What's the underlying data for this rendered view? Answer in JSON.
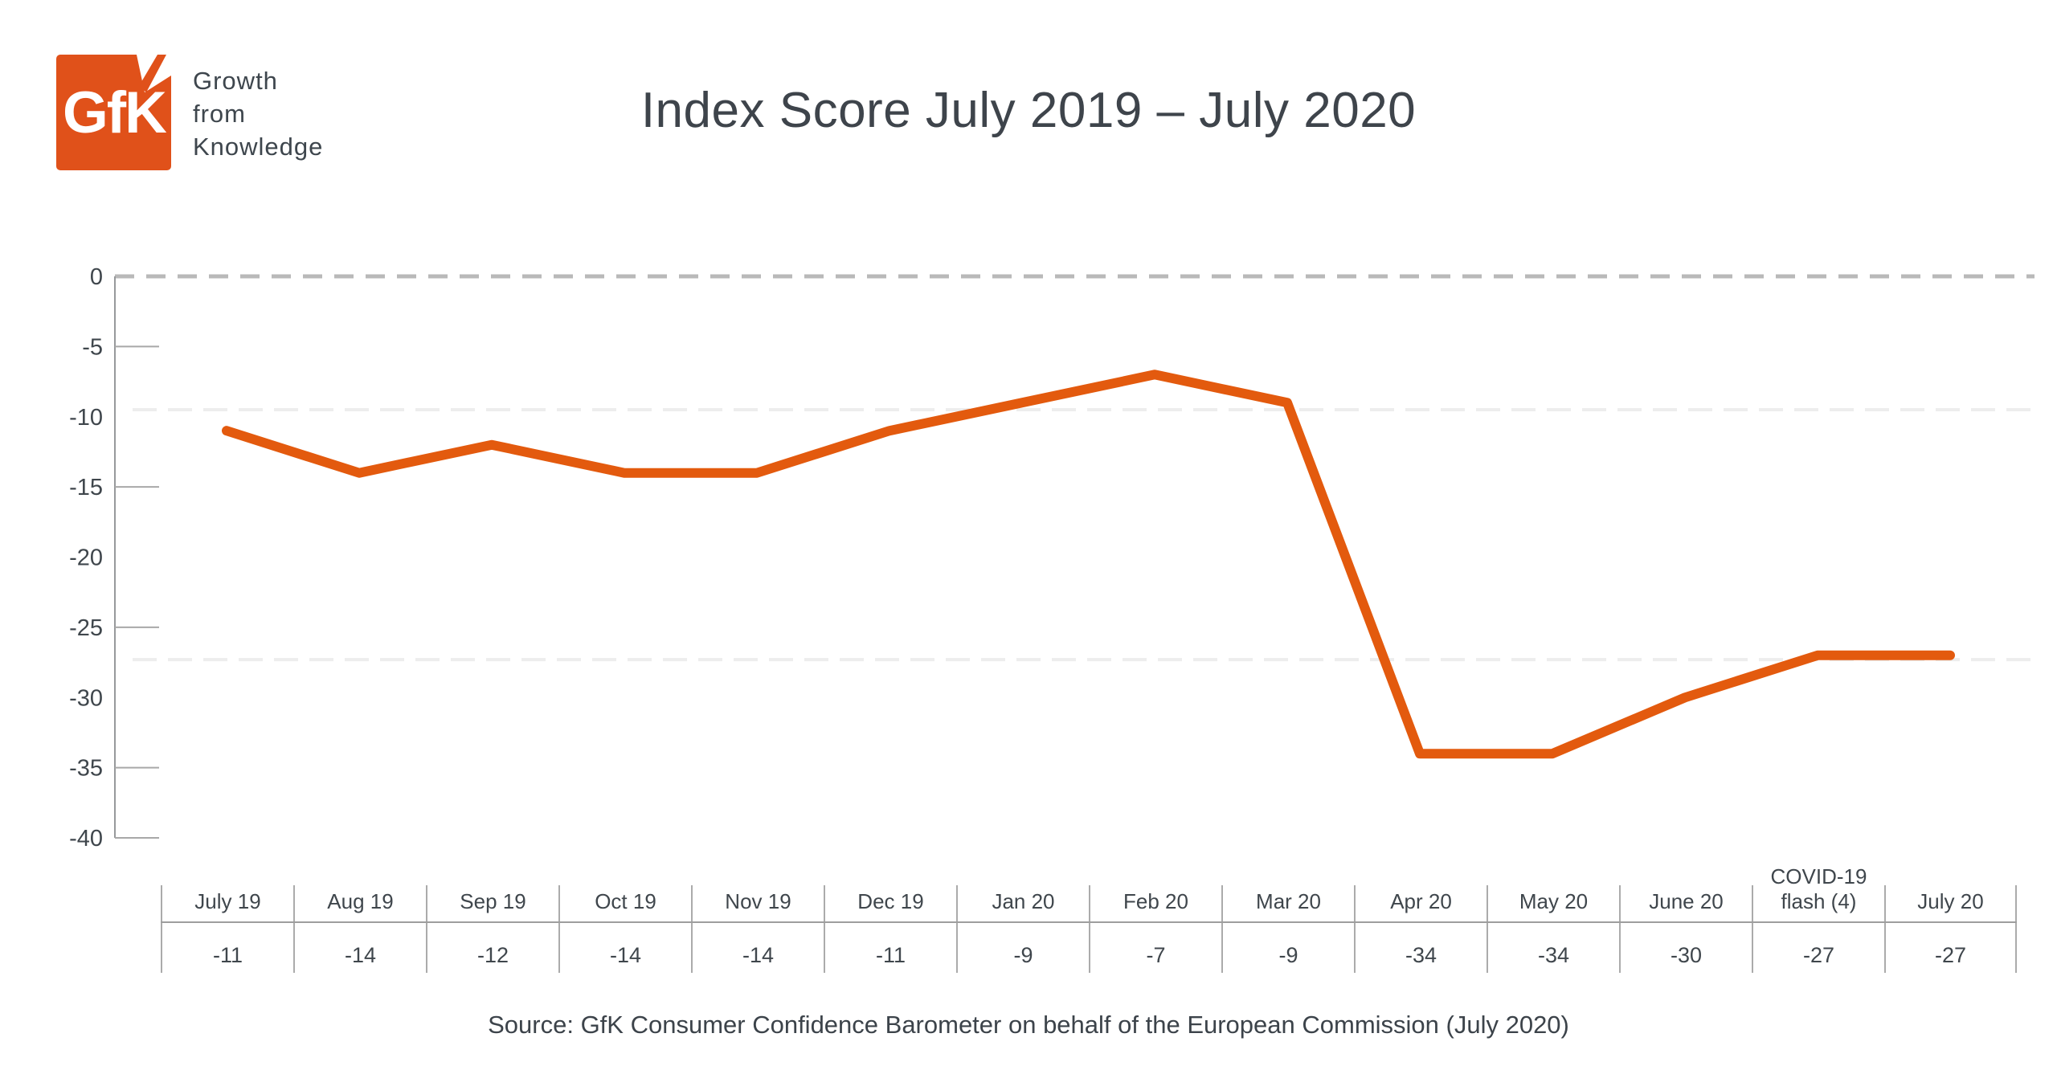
{
  "header": {
    "logo": {
      "text": "GfK",
      "tagline_lines": [
        "Growth",
        "from",
        "Knowledge"
      ]
    },
    "title": "Index Score July 2019 – July 2020"
  },
  "chart_data": {
    "type": "line",
    "title": "Index Score July 2019 – July 2020",
    "categories": [
      "July 19",
      "Aug 19",
      "Sep 19",
      "Oct 19",
      "Nov 19",
      "Dec 19",
      "Jan 20",
      "Feb 20",
      "Mar 20",
      "Apr 20",
      "May 20",
      "June 20",
      "COVID-19\nflash (4)",
      "July 20"
    ],
    "values": [
      -11,
      -14,
      -12,
      -14,
      -14,
      -11,
      -9,
      -7,
      -9,
      -34,
      -34,
      -30,
      -27,
      -27
    ],
    "value_labels": [
      "-11",
      "-14",
      "-12",
      "-14",
      "-14",
      "-11",
      "-9",
      "-7",
      "-9",
      "-34",
      "-34",
      "-30",
      "-27",
      "-27"
    ],
    "y_ticks": [
      0,
      -5,
      -10,
      -15,
      -20,
      -25,
      -30,
      -35,
      -40
    ],
    "y_ticks_with_marks": [
      -5,
      -15,
      -25,
      -35,
      -40
    ],
    "ylim": [
      -40,
      0
    ],
    "zero_line_style": "dashed",
    "faint_reference_lines": [
      -9.5,
      -27.3
    ],
    "grid": "off",
    "legend": "none",
    "series_color": "#e35a0e"
  },
  "footer": {
    "source": "Source: GfK Consumer Confidence Barometer on behalf of the European Commission (July 2020)"
  },
  "colors": {
    "line_orange": "#e35a0e",
    "logo_orange": "#e0511a",
    "dark_text": "#3e464d",
    "axis_gray": "#97999b",
    "tick_gray": "#a8a8a8",
    "zero_dash_gray": "#b9b9b9",
    "faint_line_gray": "#ededed",
    "table_line_gray": "#ababab"
  }
}
